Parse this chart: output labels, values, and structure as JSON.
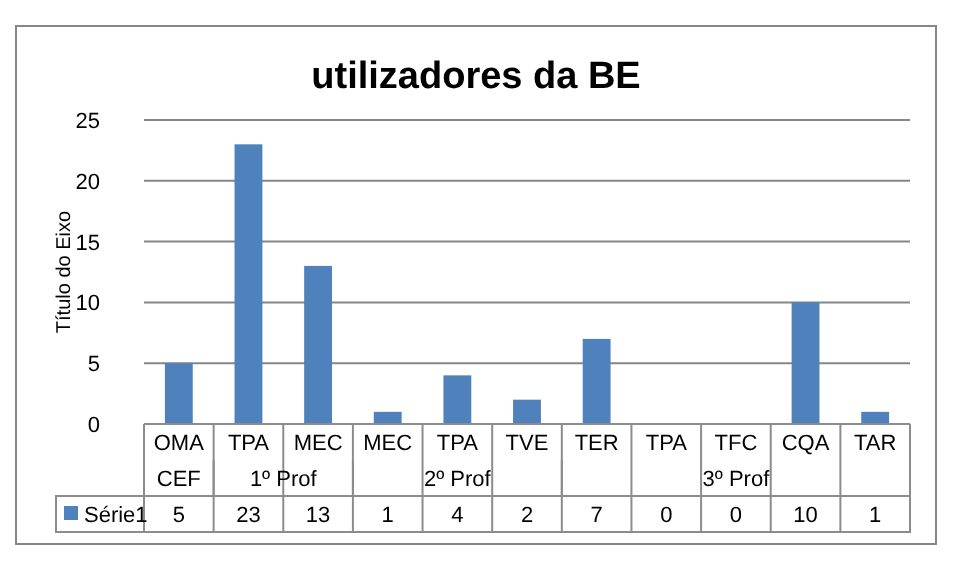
{
  "chart_data": {
    "type": "bar",
    "title": "utilizadores da BE",
    "ylabel": "Título do Eixo",
    "categories": [
      "OMA",
      "TPA",
      "MEC",
      "MEC",
      "TPA",
      "TVE",
      "TER",
      "TPA",
      "TFC",
      "CQA",
      "TAR"
    ],
    "series": [
      {
        "name": "Série1",
        "color": "#4f81bd",
        "values": [
          5,
          23,
          13,
          1,
          4,
          2,
          7,
          0,
          0,
          10,
          1
        ]
      }
    ],
    "ylim": [
      0,
      25
    ],
    "yticks": [
      0,
      5,
      10,
      15,
      20,
      25
    ],
    "grid": "y",
    "legend": "bottom",
    "data_labels": true,
    "annotations": [
      "CEF",
      "1º Prof",
      "2º Prof",
      "3º Prof"
    ]
  }
}
